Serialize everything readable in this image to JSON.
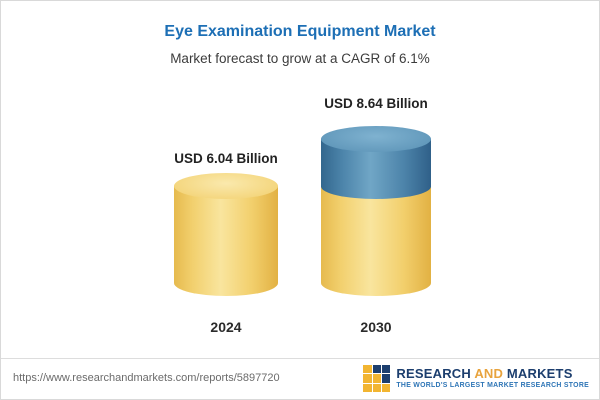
{
  "chart_data": {
    "type": "bar",
    "title": "Eye Examination Equipment Market",
    "subtitle": "Market forecast to grow at a CAGR of 6.1%",
    "categories": [
      "2024",
      "2030"
    ],
    "values": [
      6.04,
      8.64
    ],
    "value_labels": [
      "USD 6.04 Billion",
      "USD 8.64 Billion"
    ],
    "unit": "USD Billion",
    "cagr_percent": 6.1,
    "legend": "none",
    "grid": false,
    "colors": {
      "base_segment": "#f2cf6c",
      "growth_segment": "#4d85ab",
      "title_text": "#1d6fb5"
    }
  },
  "footer": {
    "url": "https://www.researchandmarkets.com/reports/5897720",
    "logo": {
      "research": "RESEARCH",
      "and": "AND",
      "markets": "MARKETS",
      "tagline": "THE WORLD'S LARGEST MARKET RESEARCH STORE"
    }
  }
}
